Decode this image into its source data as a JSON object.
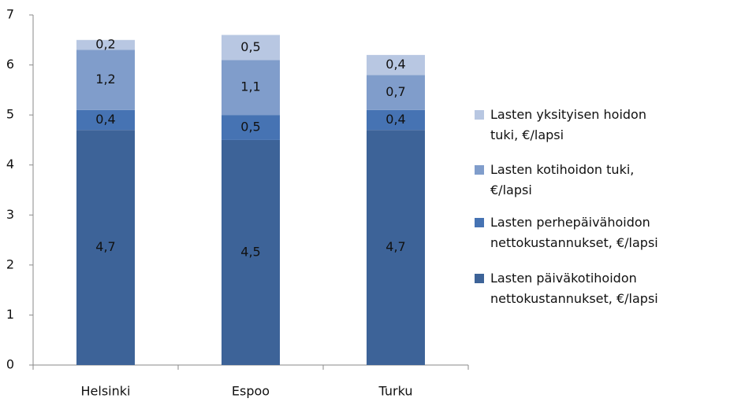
{
  "chart_data": {
    "type": "stacked_bar",
    "categories": [
      "Helsinki",
      "Espoo",
      "Turku"
    ],
    "series": [
      {
        "name": "Lasten päiväkotihoidon nettokustannukset, €/lapsi",
        "color": "#3d6398",
        "values": [
          4.7,
          4.5,
          4.7
        ],
        "value_labels": [
          "4,7",
          "4,5",
          "4,7"
        ]
      },
      {
        "name": "Lasten perhepäivähoidon nettokustannukset, €/lapsi",
        "color": "#4673b3",
        "values": [
          0.4,
          0.5,
          0.4
        ],
        "value_labels": [
          "0,4",
          "0,5",
          "0,4"
        ]
      },
      {
        "name": "Lasten kotihoidon tuki, €/lapsi",
        "color": "#809dcb",
        "values": [
          1.2,
          1.1,
          0.7
        ],
        "value_labels": [
          "1,2",
          "1,1",
          "0,7"
        ]
      },
      {
        "name": "Lasten yksityisen hoidon tuki, €/lapsi",
        "color": "#b8c7e2",
        "values": [
          0.2,
          0.5,
          0.4
        ],
        "value_labels": [
          "0,2",
          "0,5",
          "0,4"
        ]
      }
    ],
    "ylim": [
      0,
      7
    ],
    "yticks": [
      0,
      1,
      2,
      3,
      4,
      5,
      6,
      7
    ],
    "grid": false,
    "legend": "right"
  }
}
